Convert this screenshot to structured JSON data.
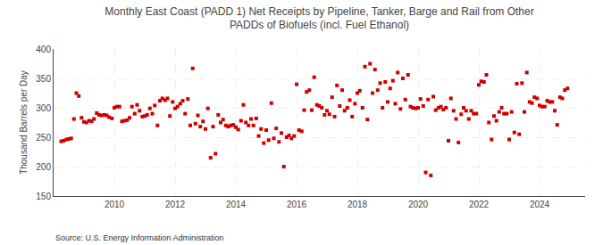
{
  "chart_data": {
    "type": "scatter",
    "title": "Monthly East Coast (PADD 1) Net Receipts by Pipeline, Tanker, Barge and Rail from Other\nPADDs of Biofuels (incl. Fuel Ethanol)",
    "ylabel": "Thousand Barrels per Day",
    "source": "Source: U.S. Energy Information Administration",
    "color": "#cc0000",
    "marker": "square",
    "grid": true,
    "ylim": [
      150,
      400
    ],
    "yticks": [
      150,
      200,
      250,
      300,
      350,
      400
    ],
    "xlim": [
      2008.0,
      2025.5
    ],
    "xticks": [
      2010,
      2012,
      2014,
      2016,
      2018,
      2020,
      2022,
      2024
    ],
    "x": [
      2008.25,
      2008.42,
      2008.58,
      2008.75,
      2008.92,
      2009.08,
      2009.25,
      2009.42,
      2009.58,
      2009.75,
      2009.92,
      2010.08,
      2010.25,
      2010.42,
      2010.58,
      2010.75,
      2010.92,
      2011.08,
      2011.25,
      2011.42,
      2011.58,
      2011.75,
      2011.92,
      2012.08,
      2012.25,
      2012.42,
      2012.58,
      2012.75,
      2012.92,
      2013.08,
      2013.25,
      2013.42,
      2013.58,
      2013.75,
      2013.92,
      2014.08,
      2014.25,
      2014.42,
      2014.58,
      2014.75,
      2014.92,
      2015.08,
      2015.25,
      2015.42,
      2015.58,
      2015.75,
      2015.92,
      2016.08,
      2016.25,
      2016.42,
      2016.58,
      2016.75,
      2016.92,
      2017.08,
      2017.25,
      2017.42,
      2017.58,
      2017.75,
      2017.92,
      2018.08,
      2018.25,
      2018.42,
      2018.58,
      2018.75,
      2018.92,
      2019.08,
      2019.25,
      2019.42,
      2019.58,
      2019.75,
      2019.92,
      2020.08,
      2020.25,
      2020.42,
      2020.58,
      2020.75,
      2020.92,
      2021.08,
      2021.25,
      2021.42,
      2021.58,
      2021.75,
      2021.92,
      2022.08,
      2022.25,
      2022.42,
      2022.58,
      2022.75,
      2022.92,
      2023.08,
      2023.25,
      2023.42,
      2023.58,
      2023.75,
      2023.92,
      2024.08,
      2024.25,
      2024.42,
      2024.58,
      2024.75,
      2024.92,
      2008.33,
      2008.5,
      2008.67,
      2008.83,
      2009.0,
      2009.17,
      2009.33,
      2009.5,
      2009.67,
      2009.83,
      2010.0,
      2010.17,
      2010.33,
      2010.5,
      2010.67,
      2010.83,
      2011.0,
      2011.17,
      2011.33,
      2011.5,
      2011.67,
      2011.83,
      2012.0,
      2012.17,
      2012.33,
      2012.5,
      2012.67,
      2012.83,
      2013.0,
      2013.17,
      2013.33,
      2013.5,
      2013.67,
      2013.83,
      2014.0,
      2014.17,
      2014.33,
      2014.5,
      2014.67,
      2014.83,
      2015.0,
      2015.17,
      2015.33,
      2015.5,
      2015.67,
      2015.83,
      2016.0,
      2016.17,
      2016.33,
      2016.5,
      2016.67,
      2016.83,
      2017.0,
      2017.17,
      2017.33,
      2017.5,
      2017.67,
      2017.83,
      2018.0,
      2018.17,
      2018.33,
      2018.5,
      2018.67,
      2018.83,
      2019.0,
      2019.17,
      2019.33,
      2019.5,
      2019.67,
      2019.83,
      2020.0,
      2020.17,
      2020.33,
      2020.5,
      2020.67,
      2020.83,
      2021.0,
      2021.17,
      2021.33,
      2021.5,
      2021.67,
      2021.83,
      2022.0,
      2022.17,
      2022.33,
      2022.5,
      2022.67,
      2022.83,
      2023.0,
      2023.17,
      2023.33,
      2023.5,
      2023.67,
      2023.83,
      2024.0,
      2024.17,
      2024.33,
      2024.5,
      2024.67,
      2024.83
    ],
    "values": [
      243,
      246,
      248,
      325,
      283,
      275,
      277,
      291,
      287,
      287,
      282,
      302,
      277,
      279,
      302,
      305,
      285,
      288,
      290,
      270,
      316,
      316,
      310,
      302,
      312,
      315,
      367,
      287,
      277,
      299,
      268,
      288,
      280,
      268,
      271,
      263,
      305,
      270,
      270,
      252,
      240,
      245,
      248,
      242,
      200,
      253,
      252,
      262,
      296,
      330,
      352,
      303,
      288,
      289,
      285,
      303,
      295,
      313,
      307,
      329,
      370,
      375,
      365,
      342,
      344,
      333,
      307,
      298,
      314,
      302,
      299,
      315,
      190,
      185,
      296,
      302,
      300,
      316,
      281,
      289,
      295,
      295,
      290,
      345,
      356,
      246,
      278,
      300,
      290,
      293,
      341,
      342,
      360,
      308,
      316,
      302,
      312,
      310,
      271,
      316,
      333,
      244,
      247,
      281,
      320,
      276,
      278,
      281,
      288,
      288,
      284,
      300,
      302,
      278,
      283,
      290,
      295,
      286,
      299,
      304,
      312,
      313,
      286,
      299,
      307,
      290,
      270,
      273,
      268,
      264,
      215,
      222,
      275,
      270,
      270,
      267,
      278,
      275,
      281,
      282,
      264,
      262,
      308,
      265,
      257,
      250,
      248,
      340,
      260,
      327,
      296,
      305,
      300,
      295,
      318,
      338,
      330,
      300,
      285,
      325,
      300,
      280,
      325,
      330,
      300,
      310,
      346,
      360,
      350,
      356,
      300,
      300,
      303,
      314,
      319,
      300,
      297,
      244,
      295,
      241,
      300,
      281,
      290,
      339,
      344,
      275,
      286,
      293,
      290,
      246,
      258,
      255,
      293,
      310,
      318,
      304,
      302,
      310,
      295,
      318,
      330
    ]
  }
}
